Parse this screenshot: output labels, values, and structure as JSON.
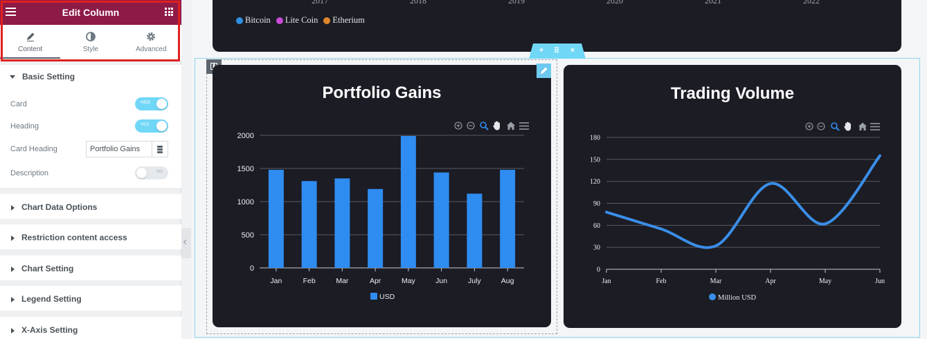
{
  "panel": {
    "title": "Edit Column",
    "tabs": [
      {
        "label": "Content",
        "icon": "pencil-icon"
      },
      {
        "label": "Style",
        "icon": "contrast-icon"
      },
      {
        "label": "Advanced",
        "icon": "gear-icon"
      }
    ],
    "basic_setting": {
      "title": "Basic Setting",
      "card_label": "Card",
      "card_toggle": "HIDE",
      "heading_label": "Heading",
      "heading_toggle": "YES",
      "card_heading_label": "Card Heading",
      "card_heading_value": "Portfolio Gains",
      "description_label": "Description",
      "description_toggle": "NO"
    },
    "sections": [
      "Chart Data Options",
      "Restriction content access",
      "Chart Setting",
      "Legend Setting",
      "X-Axis Setting"
    ],
    "accent_color": "#8e1a48"
  },
  "top_card": {
    "years": [
      "2017",
      "2018",
      "2019",
      "2020",
      "2021",
      "2022"
    ],
    "legend": [
      {
        "name": "Bitcoin",
        "color": "#2f8fe0"
      },
      {
        "name": "Lite Coin",
        "color": "#c94ad6"
      },
      {
        "name": "Etherium",
        "color": "#e0862a"
      }
    ]
  },
  "section_controls": {
    "add": "+",
    "move": "⠿",
    "close": "×"
  },
  "chart_data": [
    {
      "type": "bar",
      "title": "Portfolio Gains",
      "categories": [
        "Jan",
        "Feb",
        "Mar",
        "Apr",
        "May",
        "Jun",
        "July",
        "Aug"
      ],
      "series": [
        {
          "name": "USD",
          "values": [
            1480,
            1310,
            1350,
            1190,
            1990,
            1440,
            1120,
            1480
          ],
          "color": "#2f8cf0"
        }
      ],
      "ylim": [
        0,
        2000
      ],
      "yticks": [
        "0",
        "500",
        "1000",
        "1500",
        "2000"
      ],
      "grid": true,
      "legend": "bottom"
    },
    {
      "type": "line",
      "title": "Trading Volume",
      "categories": [
        "Jan",
        "Feb",
        "Mar",
        "Apr",
        "May",
        "Jun"
      ],
      "series": [
        {
          "name": "Million USD",
          "values": [
            78,
            55,
            32,
            117,
            62,
            155
          ],
          "color": "#3a8ee8"
        }
      ],
      "ylim": [
        0,
        180
      ],
      "yticks": [
        "0",
        "30",
        "60",
        "90",
        "120",
        "150",
        "180"
      ],
      "grid": true,
      "legend": "bottom"
    }
  ]
}
